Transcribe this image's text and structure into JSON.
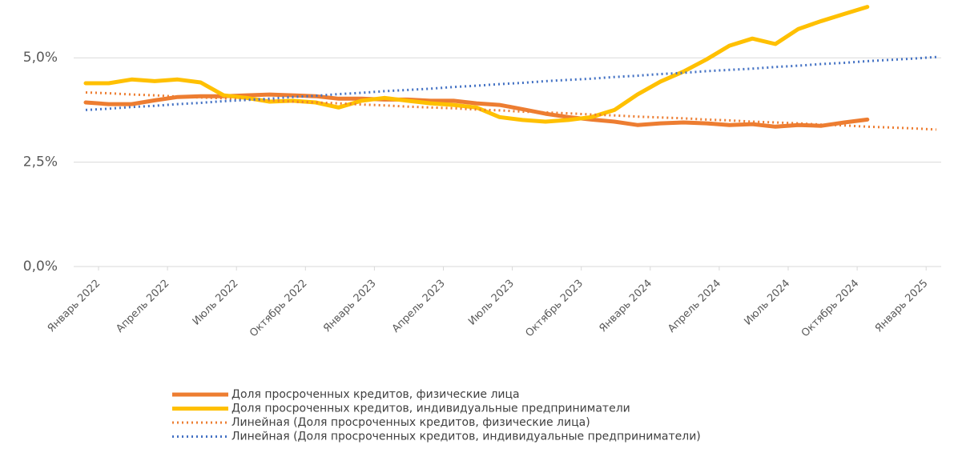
{
  "chart_data": {
    "type": "line",
    "categories": [
      "Январь 2022",
      null,
      null,
      "Апрель 2022",
      null,
      null,
      "Июль 2022",
      null,
      null,
      "Октябрь 2022",
      null,
      null,
      "Январь 2023",
      null,
      null,
      "Апрель 2023",
      null,
      null,
      "Июль 2023",
      null,
      null,
      "Октябрь 2023",
      null,
      null,
      "Январь 2024",
      null,
      null,
      "Апрель 2024",
      null,
      null,
      "Июль 2024",
      null,
      null,
      "Октябрь 2024",
      null,
      null,
      "Январь 2025",
      null
    ],
    "ylim": [
      0,
      6.25
    ],
    "yticks": [
      {
        "value": 0,
        "label": "0,0%"
      },
      {
        "value": 2.5,
        "label": "2,5%"
      },
      {
        "value": 5,
        "label": "5,0%"
      }
    ],
    "grid": true,
    "legend": "bottom",
    "series": [
      {
        "name": "Доля просроченных кредитов, физические лица",
        "color": "#ed7d31",
        "style": "solid",
        "values": [
          3.93,
          3.89,
          3.89,
          3.98,
          4.06,
          4.08,
          4.08,
          4.1,
          4.12,
          4.1,
          4.08,
          4.02,
          4.02,
          4.0,
          4.0,
          3.97,
          3.97,
          3.91,
          3.87,
          3.77,
          3.66,
          3.58,
          3.52,
          3.47,
          3.39,
          3.43,
          3.45,
          3.43,
          3.39,
          3.41,
          3.35,
          3.39,
          3.37,
          3.45,
          3.52,
          null,
          null,
          null
        ]
      },
      {
        "name": "Доля просроченных кредитов, индивидуальные предприниматели",
        "color": "#ffc000",
        "style": "solid",
        "values": [
          4.39,
          4.39,
          4.48,
          4.44,
          4.48,
          4.41,
          4.1,
          4.04,
          3.95,
          3.97,
          3.93,
          3.81,
          3.97,
          4.04,
          3.97,
          3.91,
          3.87,
          3.81,
          3.58,
          3.51,
          3.47,
          3.51,
          3.58,
          3.75,
          4.12,
          4.43,
          4.67,
          4.96,
          5.29,
          5.46,
          5.33,
          5.69,
          5.88,
          6.05,
          6.22,
          null,
          null,
          null
        ]
      },
      {
        "name": "Линейная (Доля просроченных кредитов, физические лица)",
        "color": "#ed7d31",
        "style": "dotted",
        "values": [
          4.17,
          4.15,
          4.12,
          4.1,
          4.07,
          4.05,
          4.03,
          4.0,
          3.98,
          3.95,
          3.93,
          3.91,
          3.88,
          3.86,
          3.83,
          3.81,
          3.79,
          3.76,
          3.74,
          3.71,
          3.69,
          3.67,
          3.64,
          3.62,
          3.59,
          3.57,
          3.55,
          3.52,
          3.5,
          3.47,
          3.45,
          3.43,
          3.4,
          3.38,
          3.35,
          3.33,
          3.31,
          3.28
        ]
      },
      {
        "name": "Линейная (Доля просроченных кредитов, индивидуальные предприниматели)",
        "color": "#4472c4",
        "style": "dotted",
        "values": [
          3.75,
          3.78,
          3.82,
          3.85,
          3.89,
          3.92,
          3.96,
          3.99,
          4.02,
          4.06,
          4.09,
          4.13,
          4.16,
          4.2,
          4.23,
          4.26,
          4.3,
          4.33,
          4.37,
          4.4,
          4.44,
          4.47,
          4.5,
          4.54,
          4.57,
          4.61,
          4.64,
          4.68,
          4.71,
          4.74,
          4.78,
          4.81,
          4.85,
          4.88,
          4.92,
          4.95,
          4.98,
          5.02
        ]
      }
    ]
  }
}
